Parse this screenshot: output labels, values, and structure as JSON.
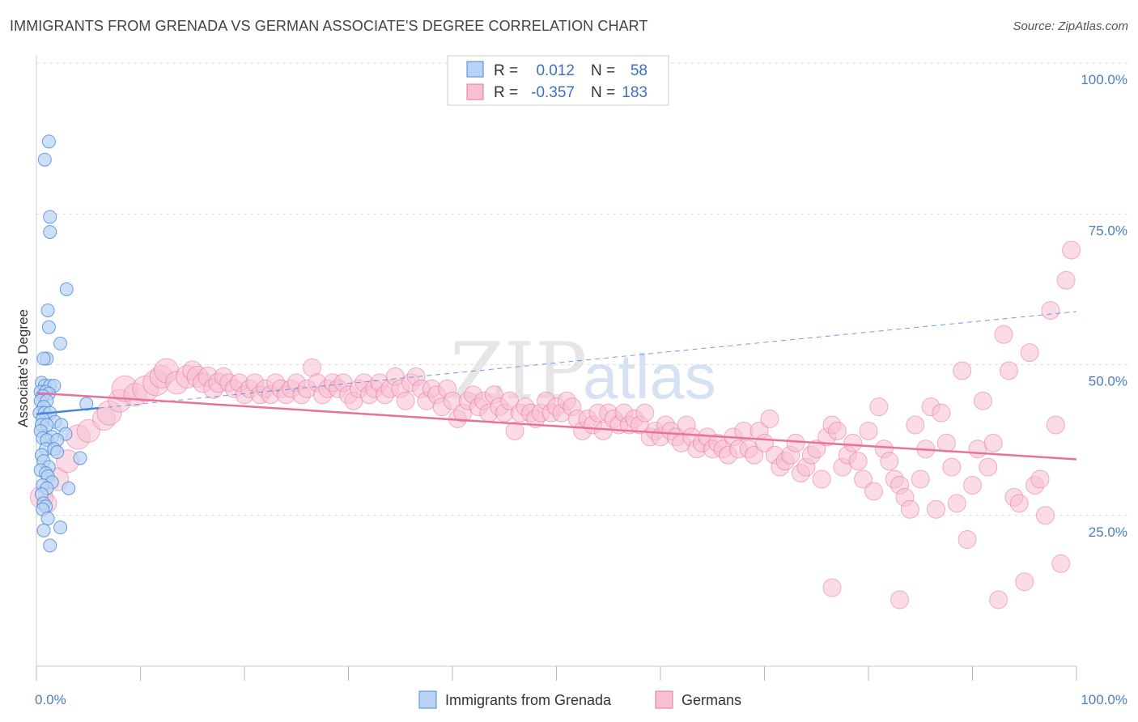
{
  "title": "IMMIGRANTS FROM GRENADA VS GERMAN ASSOCIATE'S DEGREE CORRELATION CHART",
  "source": "Source: ZipAtlas.com",
  "watermark": {
    "zip": "ZIP",
    "atlas": "atlas"
  },
  "colors": {
    "blue": "#4a86d8",
    "blue_fill": "#b8d3f3",
    "pink": "#e8729c",
    "pink_fill": "#f7bfd2",
    "value_text": "#3f6fc0",
    "grid": "#dddddd"
  },
  "legend": {
    "rows": [
      {
        "r_label": "R =",
        "r_value": "0.012",
        "n_label": "N =",
        "n_value": "58"
      },
      {
        "r_label": "R =",
        "r_value": "-0.357",
        "n_label": "N =",
        "n_value": "183"
      }
    ]
  },
  "bottom_legend": [
    "Immigrants from Grenada",
    "Germans"
  ],
  "chart_data": {
    "type": "scatter",
    "title": "IMMIGRANTS FROM GRENADA VS GERMAN ASSOCIATE'S DEGREE CORRELATION CHART",
    "xlabel": "",
    "ylabel": "Associate's Degree",
    "xlim": [
      0,
      100
    ],
    "ylim": [
      0,
      100
    ],
    "x_tick_labels": [
      "0.0%",
      "100.0%"
    ],
    "y_ticks": [
      25,
      50,
      75,
      100
    ],
    "y_tick_labels": [
      "25.0%",
      "50.0%",
      "75.0%",
      "100.0%"
    ],
    "grid": true,
    "legend_position": "top-center",
    "series": [
      {
        "name": "Immigrants from Grenada",
        "color": "#4a86d8",
        "r": 0.012,
        "n": 58,
        "trend": {
          "x": [
            0,
            6
          ],
          "y": [
            41.8,
            42.8
          ],
          "dashed_extension": {
            "x": [
              6,
              100
            ],
            "y": [
              42.8,
              58.8
            ]
          }
        },
        "points": [
          [
            1.2,
            87
          ],
          [
            0.8,
            84
          ],
          [
            1.3,
            74.5
          ],
          [
            1.3,
            72
          ],
          [
            2.9,
            62.5
          ],
          [
            1.1,
            59
          ],
          [
            1.2,
            56.2
          ],
          [
            2.3,
            53.5
          ],
          [
            1.0,
            51
          ],
          [
            0.7,
            51
          ],
          [
            0.5,
            47
          ],
          [
            0.8,
            46.5
          ],
          [
            1.3,
            46.5
          ],
          [
            1.7,
            46.5
          ],
          [
            0.4,
            45.5
          ],
          [
            0.9,
            45.5
          ],
          [
            1.2,
            45.2
          ],
          [
            0.6,
            44.8
          ],
          [
            0.4,
            44
          ],
          [
            1.0,
            44
          ],
          [
            0.7,
            43
          ],
          [
            4.8,
            43.5
          ],
          [
            0.3,
            42
          ],
          [
            0.8,
            42
          ],
          [
            1.3,
            42
          ],
          [
            0.6,
            41
          ],
          [
            1.8,
            40.5
          ],
          [
            0.5,
            40
          ],
          [
            1.0,
            40
          ],
          [
            2.4,
            40
          ],
          [
            0.4,
            39
          ],
          [
            2.8,
            38.5
          ],
          [
            1.5,
            38
          ],
          [
            0.6,
            37.8
          ],
          [
            1.0,
            37.5
          ],
          [
            2.0,
            37.5
          ],
          [
            0.9,
            36
          ],
          [
            1.7,
            36
          ],
          [
            2.0,
            35.5
          ],
          [
            0.5,
            35
          ],
          [
            4.2,
            34.5
          ],
          [
            0.7,
            34
          ],
          [
            1.2,
            33
          ],
          [
            0.4,
            32.5
          ],
          [
            0.9,
            32
          ],
          [
            1.1,
            31.5
          ],
          [
            1.5,
            30.5
          ],
          [
            0.6,
            30
          ],
          [
            1.0,
            29.5
          ],
          [
            3.1,
            29.5
          ],
          [
            0.5,
            28.5
          ],
          [
            0.7,
            27
          ],
          [
            0.9,
            26.5
          ],
          [
            0.6,
            26
          ],
          [
            1.1,
            24.5
          ],
          [
            2.3,
            23
          ],
          [
            0.7,
            22.5
          ],
          [
            1.3,
            20
          ]
        ]
      },
      {
        "name": "Germans",
        "color": "#e8729c",
        "r": -0.357,
        "n": 183,
        "trend": {
          "x": [
            0,
            100
          ],
          "y": [
            45.3,
            34.3
          ]
        },
        "points": [
          [
            0.5,
            28,
            14
          ],
          [
            1.0,
            27,
            12
          ],
          [
            2.0,
            31,
            14
          ],
          [
            3.0,
            34,
            14
          ],
          [
            4.0,
            38,
            15
          ],
          [
            5.0,
            39,
            14
          ],
          [
            6.5,
            41,
            14
          ],
          [
            7.0,
            42,
            15
          ],
          [
            8.0,
            44,
            14
          ],
          [
            8.5,
            46,
            16
          ],
          [
            9.5,
            45,
            14
          ],
          [
            10.5,
            46,
            16
          ],
          [
            11.5,
            47,
            16
          ],
          [
            12.0,
            48,
            14
          ],
          [
            12.5,
            49,
            15
          ],
          [
            13.5,
            47,
            14
          ],
          [
            14.5,
            48,
            14
          ],
          [
            15.0,
            49,
            12
          ],
          [
            15.5,
            48,
            13
          ],
          [
            16.0,
            47,
            12
          ],
          [
            16.5,
            48,
            12
          ],
          [
            17.0,
            46,
            12
          ],
          [
            17.5,
            47,
            12
          ],
          [
            18.0,
            48,
            11
          ],
          [
            18.5,
            47,
            11
          ],
          [
            19.0,
            46,
            11
          ],
          [
            19.5,
            47,
            11
          ],
          [
            20.0,
            45,
            11
          ],
          [
            20.5,
            46,
            11
          ],
          [
            21.0,
            47,
            11
          ],
          [
            21.5,
            45,
            11
          ],
          [
            22.0,
            46,
            11
          ],
          [
            22.5,
            45,
            11
          ],
          [
            23.0,
            47,
            11
          ],
          [
            23.5,
            46,
            11
          ],
          [
            24.0,
            45,
            11
          ],
          [
            24.5,
            46,
            11
          ],
          [
            25.0,
            47,
            11
          ],
          [
            25.5,
            45,
            11
          ],
          [
            26.0,
            46,
            11
          ],
          [
            26.5,
            49.5,
            11
          ],
          [
            27.0,
            47,
            11
          ],
          [
            27.5,
            45,
            11
          ],
          [
            28.0,
            46,
            11
          ],
          [
            28.5,
            47,
            11
          ],
          [
            29.0,
            46,
            11
          ],
          [
            29.5,
            47,
            11
          ],
          [
            30.0,
            45,
            11
          ],
          [
            30.5,
            44,
            11
          ],
          [
            31.0,
            46,
            11
          ],
          [
            31.5,
            47,
            11
          ],
          [
            32.0,
            45,
            11
          ],
          [
            32.5,
            46,
            11
          ],
          [
            33.0,
            47,
            11
          ],
          [
            33.5,
            45,
            11
          ],
          [
            34.0,
            46,
            11
          ],
          [
            34.5,
            48,
            11
          ],
          [
            35.0,
            46,
            11
          ],
          [
            35.5,
            44,
            11
          ],
          [
            36.0,
            47,
            11
          ],
          [
            36.5,
            48,
            11
          ],
          [
            37.0,
            46,
            11
          ],
          [
            37.5,
            44,
            11
          ],
          [
            38.0,
            46,
            11
          ],
          [
            38.5,
            45,
            11
          ],
          [
            39.0,
            43,
            11
          ],
          [
            39.5,
            46,
            11
          ],
          [
            40.0,
            44,
            11
          ],
          [
            40.5,
            41,
            11
          ],
          [
            41.0,
            42,
            11
          ],
          [
            41.5,
            44,
            11
          ],
          [
            42.0,
            45,
            11
          ],
          [
            42.5,
            43,
            11
          ],
          [
            43.0,
            44,
            11
          ],
          [
            43.5,
            42,
            11
          ],
          [
            44.0,
            45,
            11
          ],
          [
            44.5,
            43,
            11
          ],
          [
            45.0,
            42,
            11
          ],
          [
            45.5,
            44,
            11
          ],
          [
            46.0,
            39,
            11
          ],
          [
            46.5,
            42,
            11
          ],
          [
            47.0,
            43,
            11
          ],
          [
            47.5,
            42,
            11
          ],
          [
            48.0,
            41,
            11
          ],
          [
            48.5,
            42,
            11
          ],
          [
            49.0,
            44,
            11
          ],
          [
            49.5,
            42,
            11
          ],
          [
            50.0,
            43,
            11
          ],
          [
            50.5,
            42,
            11
          ],
          [
            51.0,
            44,
            11
          ],
          [
            51.5,
            43,
            11
          ],
          [
            52.0,
            41,
            11
          ],
          [
            52.5,
            39,
            11
          ],
          [
            53.0,
            41,
            11
          ],
          [
            53.5,
            40,
            11
          ],
          [
            54.0,
            42,
            11
          ],
          [
            54.5,
            39,
            11
          ],
          [
            55.0,
            42,
            11
          ],
          [
            55.5,
            41,
            11
          ],
          [
            56.0,
            40,
            11
          ],
          [
            56.5,
            42,
            11
          ],
          [
            57.0,
            40,
            11
          ],
          [
            57.5,
            41,
            11
          ],
          [
            58.0,
            40,
            11
          ],
          [
            58.5,
            42,
            11
          ],
          [
            59.0,
            38,
            11
          ],
          [
            59.5,
            39,
            11
          ],
          [
            60.0,
            38,
            11
          ],
          [
            60.5,
            40,
            11
          ],
          [
            61.0,
            39,
            11
          ],
          [
            61.5,
            38,
            11
          ],
          [
            62.0,
            37,
            11
          ],
          [
            62.5,
            40,
            11
          ],
          [
            63.0,
            38,
            11
          ],
          [
            63.5,
            36,
            11
          ],
          [
            64.0,
            37,
            11
          ],
          [
            64.5,
            38,
            11
          ],
          [
            65.0,
            36,
            11
          ],
          [
            65.5,
            37,
            11
          ],
          [
            66.0,
            36,
            11
          ],
          [
            66.5,
            35,
            11
          ],
          [
            67.0,
            38,
            11
          ],
          [
            67.5,
            36,
            11
          ],
          [
            68.0,
            39,
            11
          ],
          [
            68.5,
            36,
            11
          ],
          [
            69.0,
            35,
            11
          ],
          [
            69.5,
            39,
            11
          ],
          [
            70.0,
            37,
            11
          ],
          [
            70.5,
            41,
            11
          ],
          [
            71.0,
            35,
            11
          ],
          [
            71.5,
            33,
            11
          ],
          [
            72.0,
            34,
            11
          ],
          [
            72.5,
            35,
            11
          ],
          [
            73.0,
            37,
            11
          ],
          [
            73.5,
            32,
            11
          ],
          [
            74.0,
            33,
            11
          ],
          [
            74.5,
            35,
            11
          ],
          [
            75.0,
            36,
            11
          ],
          [
            75.5,
            31,
            11
          ],
          [
            76.0,
            38,
            11
          ],
          [
            76.5,
            40,
            11
          ],
          [
            77.0,
            39,
            11
          ],
          [
            77.5,
            33,
            11
          ],
          [
            78.0,
            35,
            11
          ],
          [
            78.5,
            37,
            11
          ],
          [
            79.0,
            34,
            11
          ],
          [
            79.5,
            31,
            11
          ],
          [
            80.0,
            39,
            11
          ],
          [
            80.5,
            29,
            11
          ],
          [
            81.0,
            43,
            11
          ],
          [
            81.5,
            36,
            11
          ],
          [
            82.0,
            34,
            11
          ],
          [
            82.5,
            31,
            11
          ],
          [
            83.0,
            30,
            11
          ],
          [
            83.5,
            28,
            11
          ],
          [
            84.0,
            26,
            11
          ],
          [
            84.5,
            40,
            11
          ],
          [
            85.0,
            31,
            11
          ],
          [
            85.5,
            36,
            11
          ],
          [
            86.0,
            43,
            11
          ],
          [
            86.5,
            26,
            11
          ],
          [
            87.0,
            42,
            11
          ],
          [
            87.5,
            37,
            11
          ],
          [
            88.0,
            33,
            11
          ],
          [
            88.5,
            27,
            11
          ],
          [
            89.0,
            49,
            11
          ],
          [
            89.5,
            21,
            11
          ],
          [
            90.0,
            30,
            11
          ],
          [
            90.5,
            36,
            11
          ],
          [
            91.0,
            44,
            11
          ],
          [
            91.5,
            33,
            11
          ],
          [
            92.0,
            37,
            11
          ],
          [
            92.5,
            11,
            11
          ],
          [
            93.0,
            55,
            11
          ],
          [
            93.5,
            49,
            11
          ],
          [
            94.0,
            28,
            11
          ],
          [
            94.5,
            27,
            11
          ],
          [
            95.0,
            14,
            11
          ],
          [
            95.5,
            52,
            11
          ],
          [
            96.0,
            30,
            11
          ],
          [
            96.5,
            31,
            11
          ],
          [
            97.0,
            25,
            11
          ],
          [
            97.5,
            59,
            11
          ],
          [
            98.0,
            40,
            11
          ],
          [
            98.5,
            17,
            11
          ],
          [
            99.0,
            64,
            11
          ],
          [
            99.5,
            69,
            11
          ],
          [
            76.5,
            13,
            11
          ],
          [
            83.0,
            11,
            11
          ]
        ]
      }
    ]
  }
}
